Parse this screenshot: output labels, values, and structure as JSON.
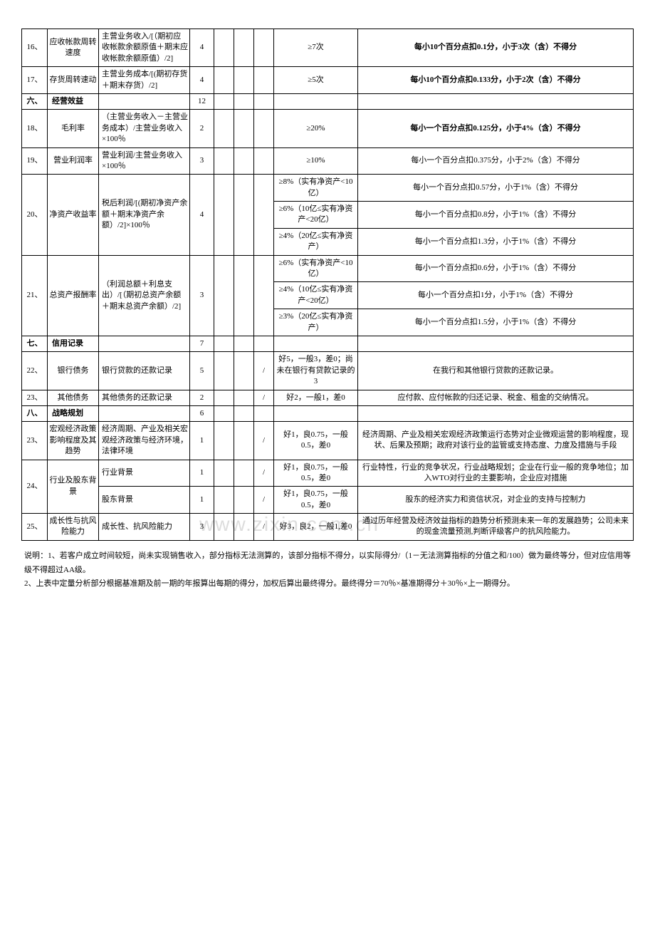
{
  "watermark": "www.zixin.com.cn",
  "rows": [
    {
      "idx": "16、",
      "name": "应收帐款周转速度",
      "formula": "主营业务收入/[（期初应收帐款余额原值＋期末应收帐款余额原值）/2]",
      "weight": "4",
      "b1": "",
      "b2": "",
      "b3": "",
      "std": "≥7次",
      "rule": "每小10个百分点扣0.1分，小于3次（含）不得分",
      "bold": true
    },
    {
      "idx": "17、",
      "name": "存货周转速动",
      "formula": "主营业务成本/[(期初存货＋期末存货）/2]",
      "weight": "4",
      "b1": "",
      "b2": "",
      "b3": "",
      "std": "≥5次",
      "rule": "每小10个百分点扣0.133分，小于2次（含）不得分",
      "bold": true
    },
    {
      "section": true,
      "idx": "六、",
      "name": "经营效益",
      "formula": "",
      "weight": "12",
      "b1": "",
      "b2": "",
      "b3": "",
      "std": "",
      "rule": ""
    },
    {
      "idx": "18、",
      "name": "毛利率",
      "formula": "（主营业务收入－主营业务成本）/主营业务收入×100％",
      "weight": "2",
      "b1": "",
      "b2": "",
      "b3": "",
      "std": "≥20%",
      "rule": "每小一个百分点扣0.125分，小于4%（含）不得分",
      "bold": true
    },
    {
      "idx": "19、",
      "name": "营业利润率",
      "formula": "营业利润/主营业务收入×100％",
      "weight": "3",
      "b1": "",
      "b2": "",
      "b3": "",
      "std": "≥10%",
      "rule": "每小一个百分点扣0.375分，小于2%（含）不得分"
    },
    {
      "rowspan": 3,
      "idx": "20、",
      "name": "净资产收益率",
      "formula": "税后利润/[(期初净资产余额＋期末净资产余额）/2]×100％",
      "weight": "4",
      "b1": "",
      "b2": "",
      "b3": "",
      "subrows": [
        {
          "std": "≥8%（实有净资产<10亿）",
          "rule": "每小一个百分点扣0.57分，小于1%（含）不得分"
        },
        {
          "std": "≥6%（10亿≤实有净资产<20亿）",
          "rule": "每小一个百分点扣0.8分，小于1%（含）不得分"
        },
        {
          "std": "≥4%（20亿≤实有净资产）",
          "rule": "每小一个百分点扣1.3分，小于1%（含）不得分"
        }
      ]
    },
    {
      "rowspan": 3,
      "idx": "21、",
      "name": "总资产报酬率",
      "formula": "（利润总额＋利息支出）/[（期初总资产余额＋期末总资产余额）/2]",
      "weight": "3",
      "b1": "",
      "b2": "",
      "b3": "",
      "subrows": [
        {
          "std": "≥6%（实有净资产<10亿）",
          "rule": "每小一个百分点扣0.6分，小于1%（含）不得分"
        },
        {
          "std": "≥4%（10亿≤实有净资产<20亿）",
          "rule": "每小一个百分点扣1分，小于1%（含）不得分"
        },
        {
          "std": "≥3%（20亿≤实有净资产）",
          "rule": "每小一个百分点扣1.5分，小于1%（含）不得分"
        }
      ]
    },
    {
      "section": true,
      "idx": "七、",
      "name": "信用记录",
      "formula": "",
      "weight": "7",
      "b1": "",
      "b2": "",
      "b3": "",
      "std": "",
      "rule": ""
    },
    {
      "idx": "22、",
      "name": "银行债务",
      "formula": "银行贷款的还款记录",
      "weight": "5",
      "b1": "",
      "b2": "",
      "b3": "/",
      "std": "好5，一般3，差0；尚未在银行有贷款记录的3",
      "rule": "在我行和其他银行贷款的还款记录。"
    },
    {
      "idx": "23、",
      "name": "其他债务",
      "formula": "其他债务的还款记录",
      "weight": "2",
      "b1": "",
      "b2": "",
      "b3": "/",
      "std": "好2，一般1，差0",
      "rule": "应付款、应付帐款的归还记录、税金、租金的交纳情况。"
    },
    {
      "section": true,
      "idx": "八、",
      "name": "战略规划",
      "formula": "",
      "weight": "6",
      "b1": "",
      "b2": "",
      "b3": "",
      "std": "",
      "rule": ""
    },
    {
      "idx": "23、",
      "name": "宏观经济政策影响程度及其趋势",
      "formula": "经济周期、产业及相关宏观经济政策与经济环境，法律环境",
      "weight": "1",
      "b1": "",
      "b2": "",
      "b3": "/",
      "std": "好1，良0.75，一般0.5，差0",
      "rule": "经济周期、产业及相关宏观经济政策运行态势对企业微观运营的影响程度，现状、后果及预期；政府对该行业的监管或支持态度、力度及措施与手段"
    },
    {
      "rowspan": 2,
      "idx": "24、",
      "name": "行业及股东背景",
      "subrows2": [
        {
          "formula": "行业背景",
          "weight": "1",
          "b1": "",
          "b2": "",
          "b3": "/",
          "std": "好1，良0.75，一般0.5，差0",
          "rule": "行业特性，行业的竞争状况，行业战略规划；企业在行业一般的竞争地位；加入WTO对行业的主要影响，企业应对措施"
        },
        {
          "formula": "股东背景",
          "weight": "1",
          "b1": "",
          "b2": "",
          "b3": "/",
          "std": "好1，良0.75，一般0.5，差0",
          "rule": "股东的经济实力和资信状况，对企业的支持与控制力"
        }
      ]
    },
    {
      "idx": "25、",
      "name": "成长性与抗风险能力",
      "formula": "成长性、抗风险能力",
      "weight": "3",
      "b1": "",
      "b2": "",
      "b3": "/",
      "std": "好3，良2，一般1,差0",
      "rule": "通过历年经营及经济效益指标的趋势分析预测未来一年的发展趋势；公司未来的现金流量预测,判断评级客户的抗风险能力。"
    }
  ],
  "notes": {
    "n1": "说明：1、若客户成立时间较短，尚未实现销售收入，部分指标无法测算的，该部分指标不得分，以实际得分/（1－无法测算指标的分值之和/100）做为最终等分，但对应信用等级不得超过AA级。",
    "n2": "2、上表中定量分析部分根据基准期及前一期的年报算出每期的得分，加权后算出最终得分。最终得分＝70％×基准期得分＋30％×上一期得分。"
  }
}
